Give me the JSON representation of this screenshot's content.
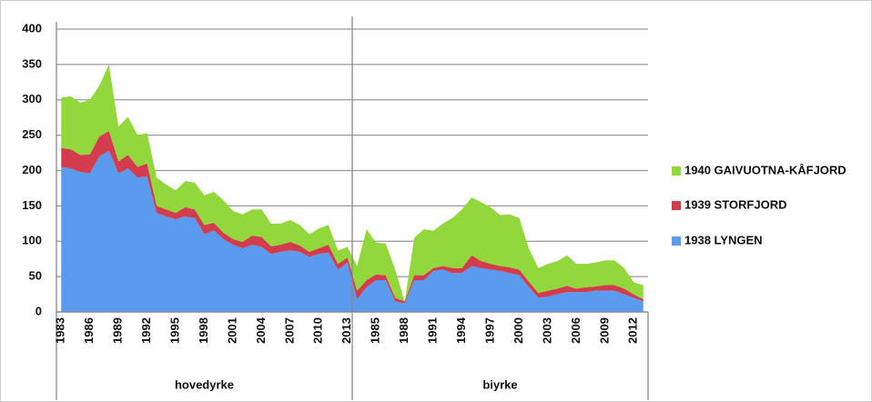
{
  "chart_data": {
    "type": "stacked_area",
    "categories": [
      "1983",
      null,
      null,
      "1986",
      null,
      null,
      "1989",
      null,
      null,
      "1992",
      null,
      null,
      "1995",
      null,
      null,
      "1998",
      null,
      null,
      "2001",
      null,
      null,
      "2004",
      null,
      null,
      "2007",
      null,
      null,
      "2010",
      null,
      null,
      "2013",
      null,
      null,
      "1985",
      null,
      null,
      "1988",
      null,
      null,
      "1991",
      null,
      null,
      "1994",
      null,
      null,
      "1997",
      null,
      null,
      "2000",
      null,
      null,
      "2003",
      null,
      null,
      "2006",
      null,
      null,
      "2009",
      null,
      null,
      "2012",
      null
    ],
    "group_labels": [
      "hovedyrke",
      "biyrke"
    ],
    "series": [
      {
        "name": "1938 LYNGEN",
        "color": "#5b9bef",
        "values": [
          205,
          203,
          198,
          196,
          220,
          228,
          196,
          203,
          190,
          192,
          140,
          135,
          131,
          135,
          133,
          110,
          115,
          103,
          95,
          90,
          95,
          92,
          82,
          85,
          87,
          85,
          78,
          82,
          84,
          60,
          70,
          18,
          35,
          45,
          45,
          15,
          12,
          45,
          45,
          58,
          60,
          55,
          55,
          65,
          62,
          60,
          58,
          55,
          52,
          35,
          20,
          22,
          25,
          28,
          28,
          28,
          30,
          30,
          30,
          25,
          20,
          15
        ]
      },
      {
        "name": "1939 STORFJORD",
        "color": "#d23c4c",
        "values": [
          27,
          27,
          24,
          27,
          28,
          28,
          17,
          19,
          15,
          18,
          10,
          10,
          9,
          13,
          12,
          13,
          11,
          9,
          8,
          9,
          13,
          14,
          11,
          10,
          12,
          9,
          7,
          8,
          11,
          8,
          7,
          12,
          10,
          8,
          7,
          5,
          3,
          7,
          7,
          4,
          5,
          7,
          7,
          15,
          10,
          8,
          7,
          8,
          8,
          8,
          7,
          8,
          8,
          9,
          5,
          7,
          6,
          8,
          8,
          8,
          5,
          3
        ]
      },
      {
        "name": "1940 GAIVUOTNA-KÅFJORD",
        "color": "#92d83c",
        "values": [
          71,
          75,
          74,
          77,
          72,
          94,
          49,
          54,
          45,
          43,
          40,
          35,
          32,
          37,
          38,
          42,
          44,
          46,
          40,
          39,
          37,
          39,
          32,
          30,
          31,
          29,
          25,
          28,
          28,
          19,
          15,
          35,
          72,
          45,
          45,
          40,
          0,
          53,
          65,
          53,
          60,
          71,
          83,
          82,
          83,
          80,
          72,
          75,
          73,
          47,
          35,
          38,
          39,
          43,
          35,
          33,
          34,
          35,
          35,
          29,
          17,
          20
        ]
      }
    ],
    "ylim": [
      0,
      400
    ],
    "yticks": [
      0,
      50,
      100,
      150,
      200,
      250,
      300,
      350,
      400
    ],
    "grid": true,
    "legend": "right"
  }
}
